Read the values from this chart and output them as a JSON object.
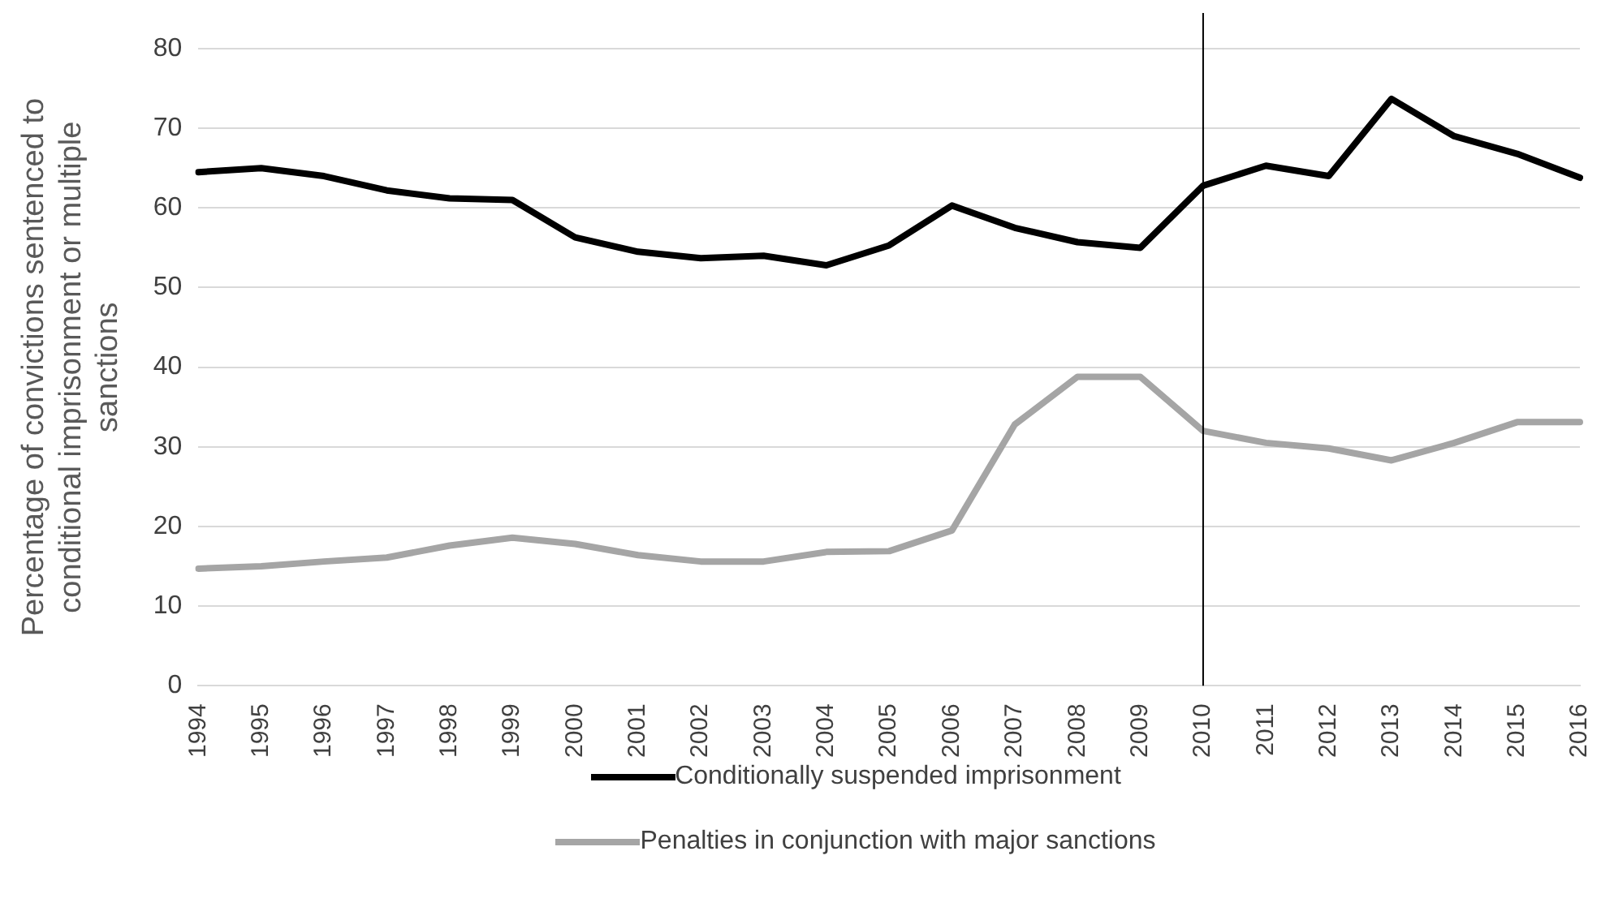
{
  "chart_data": {
    "type": "line",
    "ylabel": "Percentage of convictions sentenced to conditional imprisonment or multiple sanctions",
    "categories": [
      "1994",
      "1995",
      "1996",
      "1997",
      "1998",
      "1999",
      "2000",
      "2001",
      "2002",
      "2003",
      "2004",
      "2005",
      "2006",
      "2007",
      "2008",
      "2009",
      "2010",
      "2011",
      "2012",
      "2013",
      "2014",
      "2015",
      "2016"
    ],
    "series": [
      {
        "name": "Conditionally suspended imprisonment",
        "color": "#000000",
        "values": [
          64.5,
          65,
          64,
          62.2,
          61.2,
          61,
          56.3,
          54.5,
          53.7,
          54,
          52.8,
          55.3,
          60.3,
          57.5,
          55.7,
          55,
          62.8,
          65.3,
          64,
          73.7,
          69,
          66.8,
          63.8
        ]
      },
      {
        "name": "Penalties in conjunction with major sanctions",
        "color": "#a5a5a5",
        "values": [
          14.7,
          15,
          15.6,
          16.1,
          17.6,
          18.6,
          17.8,
          16.4,
          15.6,
          15.6,
          16.8,
          16.9,
          19.5,
          32.8,
          38.8,
          38.8,
          32,
          30.5,
          29.8,
          28.3,
          30.5,
          33.1,
          33.1
        ]
      }
    ],
    "ylim": [
      0,
      80
    ],
    "yticks": [
      0,
      10,
      20,
      30,
      40,
      50,
      60,
      70,
      80
    ],
    "ref_lines": [
      {
        "axis": "x",
        "value": "2010",
        "color": "#000000"
      }
    ],
    "grid": "y",
    "legend": "bottom",
    "marker": "none",
    "line_style": "solid"
  }
}
